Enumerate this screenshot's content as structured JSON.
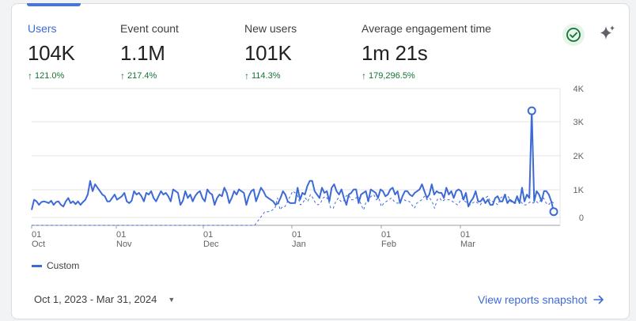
{
  "metrics": [
    {
      "label": "Users",
      "value": "104K",
      "delta": "121.0%"
    },
    {
      "label": "Event count",
      "value": "1.1M",
      "delta": "217.4%"
    },
    {
      "label": "New users",
      "value": "101K",
      "delta": "114.3%"
    },
    {
      "label": "Average engagement time",
      "value": "1m 21s",
      "delta": "179,296.5%"
    }
  ],
  "icons": {
    "check": "check-circle-icon",
    "sparkle": "sparkle-icon",
    "delta": "arrow-up-icon",
    "caret": "caret-down-icon",
    "link_arrow": "arrow-right-icon"
  },
  "colors": {
    "accent": "#3d6ad6",
    "positive": "#137333",
    "check_bg": "#e6f4ea"
  },
  "chart_data": {
    "type": "line",
    "y_tick_labels": [
      "4K",
      "3K",
      "2K",
      "1K",
      "0"
    ],
    "ylim": [
      0,
      4000
    ],
    "x_tick_labels": [
      {
        "day": "01",
        "month": "Oct"
      },
      {
        "day": "01",
        "month": "Nov"
      },
      {
        "day": "01",
        "month": "Dec"
      },
      {
        "day": "01",
        "month": "Jan"
      },
      {
        "day": "01",
        "month": "Feb"
      },
      {
        "day": "01",
        "month": "Mar"
      }
    ],
    "x_range": [
      "2023-10-01",
      "2024-03-31"
    ],
    "grid": true,
    "legend": "bottom-left",
    "series": [
      {
        "name": "Custom",
        "style": "solid",
        "values": [
          450,
          750,
          700,
          600,
          680,
          700,
          680,
          650,
          720,
          600,
          680,
          700,
          600,
          550,
          700,
          800,
          650,
          700,
          620,
          700,
          600,
          680,
          750,
          900,
          1300,
          1000,
          1200,
          1100,
          1000,
          900,
          850,
          700,
          700,
          800,
          900,
          750,
          800,
          850,
          950,
          700,
          650,
          720,
          1000,
          900,
          950,
          850,
          700,
          950,
          900,
          1000,
          800,
          700,
          850,
          1000,
          900,
          950,
          850,
          700,
          1050,
          1000,
          950,
          600,
          720,
          1000,
          800,
          900,
          700,
          850,
          950,
          1000,
          800,
          700,
          1050,
          950,
          900,
          600,
          800,
          900,
          850,
          1100,
          950,
          650,
          800,
          1000,
          900,
          1050,
          1000,
          950,
          600,
          850,
          1000,
          1050,
          700,
          900,
          1100,
          1000,
          850,
          800,
          750,
          700,
          600,
          650,
          800,
          1000,
          900,
          700,
          650,
          650,
          650,
          1100,
          750,
          950,
          900,
          1150,
          1300,
          1300,
          1000,
          900,
          800,
          1100,
          950,
          1000,
          700,
          1100,
          1200,
          1000,
          900,
          1050,
          800,
          600,
          900,
          950,
          1050,
          1050,
          650,
          900,
          950,
          1000,
          700,
          1050,
          1000,
          950,
          800,
          1050,
          1000,
          850,
          900,
          1050,
          1100,
          900,
          1000,
          650,
          850,
          1000,
          1000,
          900,
          850,
          950,
          1000,
          1050,
          1200,
          1000,
          800,
          900,
          1200,
          900,
          1000,
          950,
          950,
          800,
          1100,
          900,
          1000,
          800,
          1000,
          1050,
          1000,
          750,
          950,
          550,
          700,
          800,
          1000,
          700,
          700,
          800,
          650,
          750,
          600,
          600,
          800,
          850,
          700,
          700,
          900,
          650,
          750,
          700,
          650,
          850,
          650,
          1100,
          700,
          900,
          800,
          3350,
          700,
          1000,
          900,
          700,
          1000,
          1000,
          900,
          700,
          400
        ]
      },
      {
        "name": "",
        "style": "dashed",
        "values": [
          0,
          0,
          0,
          0,
          0,
          0,
          0,
          0,
          0,
          0,
          0,
          0,
          0,
          0,
          0,
          0,
          0,
          0,
          0,
          0,
          0,
          0,
          0,
          0,
          0,
          0,
          0,
          0,
          0,
          0,
          0,
          0,
          0,
          0,
          0,
          0,
          0,
          0,
          0,
          0,
          0,
          0,
          0,
          0,
          0,
          0,
          0,
          0,
          0,
          0,
          0,
          0,
          0,
          0,
          0,
          0,
          0,
          0,
          0,
          0,
          0,
          0,
          0,
          0,
          0,
          0,
          0,
          0,
          0,
          0,
          0,
          0,
          0,
          0,
          0,
          0,
          0,
          0,
          0,
          0,
          0,
          0,
          0,
          0,
          0,
          0,
          0,
          0,
          0,
          100,
          200,
          300,
          400,
          400,
          400,
          450,
          500,
          800,
          450,
          550,
          550,
          700,
          850,
          1000,
          950,
          850,
          600,
          650,
          800,
          700,
          900,
          800,
          650,
          600,
          650,
          800,
          850,
          750,
          500,
          500,
          700,
          800,
          700,
          700,
          850,
          900,
          750,
          750,
          800,
          850,
          600,
          450,
          700,
          750,
          850,
          900,
          750,
          800,
          550,
          650,
          700,
          750,
          800,
          700,
          650,
          650,
          750,
          750,
          700,
          700,
          600,
          500,
          650,
          700,
          750,
          850,
          750,
          800,
          700,
          500,
          750,
          800,
          700,
          750,
          750,
          750,
          700,
          650,
          600,
          700,
          800,
          700,
          650,
          600,
          650,
          700,
          650,
          600,
          700,
          800,
          850,
          700,
          700,
          650,
          600,
          800,
          850,
          900,
          850,
          700,
          650,
          650,
          750,
          700,
          600,
          600,
          650,
          700,
          650,
          700,
          650,
          750,
          800,
          650,
          600,
          700,
          650
        ]
      }
    ]
  },
  "legend": {
    "label": "Custom"
  },
  "footer": {
    "date_range": "Oct 1, 2023 - Mar 31, 2024",
    "snapshot_link": "View reports snapshot"
  }
}
